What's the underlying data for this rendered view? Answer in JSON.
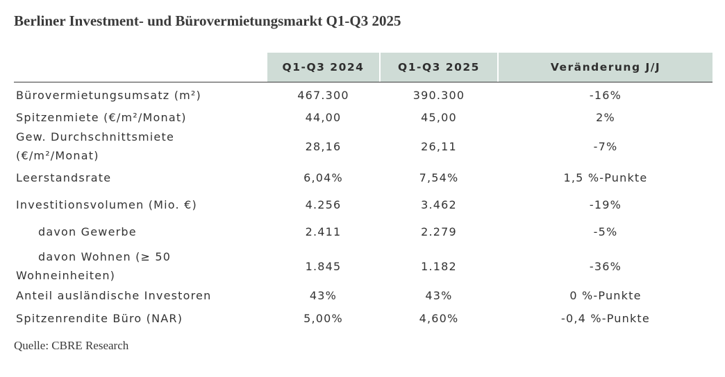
{
  "title": "Berliner Investment- und Bürovermietungsmarkt Q1-Q3 2025",
  "source": "Quelle: CBRE Research",
  "table": {
    "headers": [
      "",
      "Q1-Q3 2024",
      "Q1-Q3 2025",
      "Veränderung J/J"
    ],
    "rows": [
      {
        "label": "Bürovermietungsumsatz (m²)",
        "v2024": "467.300",
        "v2025": "390.300",
        "change": "-16%"
      },
      {
        "label": "Spitzenmiete (€/m²/Monat)",
        "v2024": "44,00",
        "v2025": "45,00",
        "change": "2%"
      },
      {
        "label_line1": "Gew. Durchschnittsmiete",
        "label_line2": "(€/m²/Monat)",
        "v2024": "28,16",
        "v2025": "26,11",
        "change": "-7%"
      },
      {
        "label": "Leerstandsrate",
        "v2024": "6,04%",
        "v2025": "7,54%",
        "change": "1,5 %-Punkte"
      },
      {
        "label": "Investitionsvolumen (Mio. €)",
        "v2024": "4.256",
        "v2025": "3.462",
        "change": "-19%"
      },
      {
        "label": "davon Gewerbe",
        "v2024": "2.411",
        "v2025": "2.279",
        "change": "-5%"
      },
      {
        "label_line1": "davon Wohnen (≥ 50",
        "label_line2": "Wohneinheiten)",
        "v2024": "1.845",
        "v2025": "1.182",
        "change": "-36%"
      },
      {
        "label": "Anteil ausländische Investoren",
        "v2024": "43%",
        "v2025": "43%",
        "change": "0 %-Punkte"
      },
      {
        "label": "Spitzenrendite Büro (NAR)",
        "v2024": "5,00%",
        "v2025": "4,60%",
        "change": "-0,4 %-Punkte"
      }
    ]
  },
  "colors": {
    "header_background": "#cfdcd6",
    "text": "#333333",
    "rule": "#3a3a3a"
  }
}
